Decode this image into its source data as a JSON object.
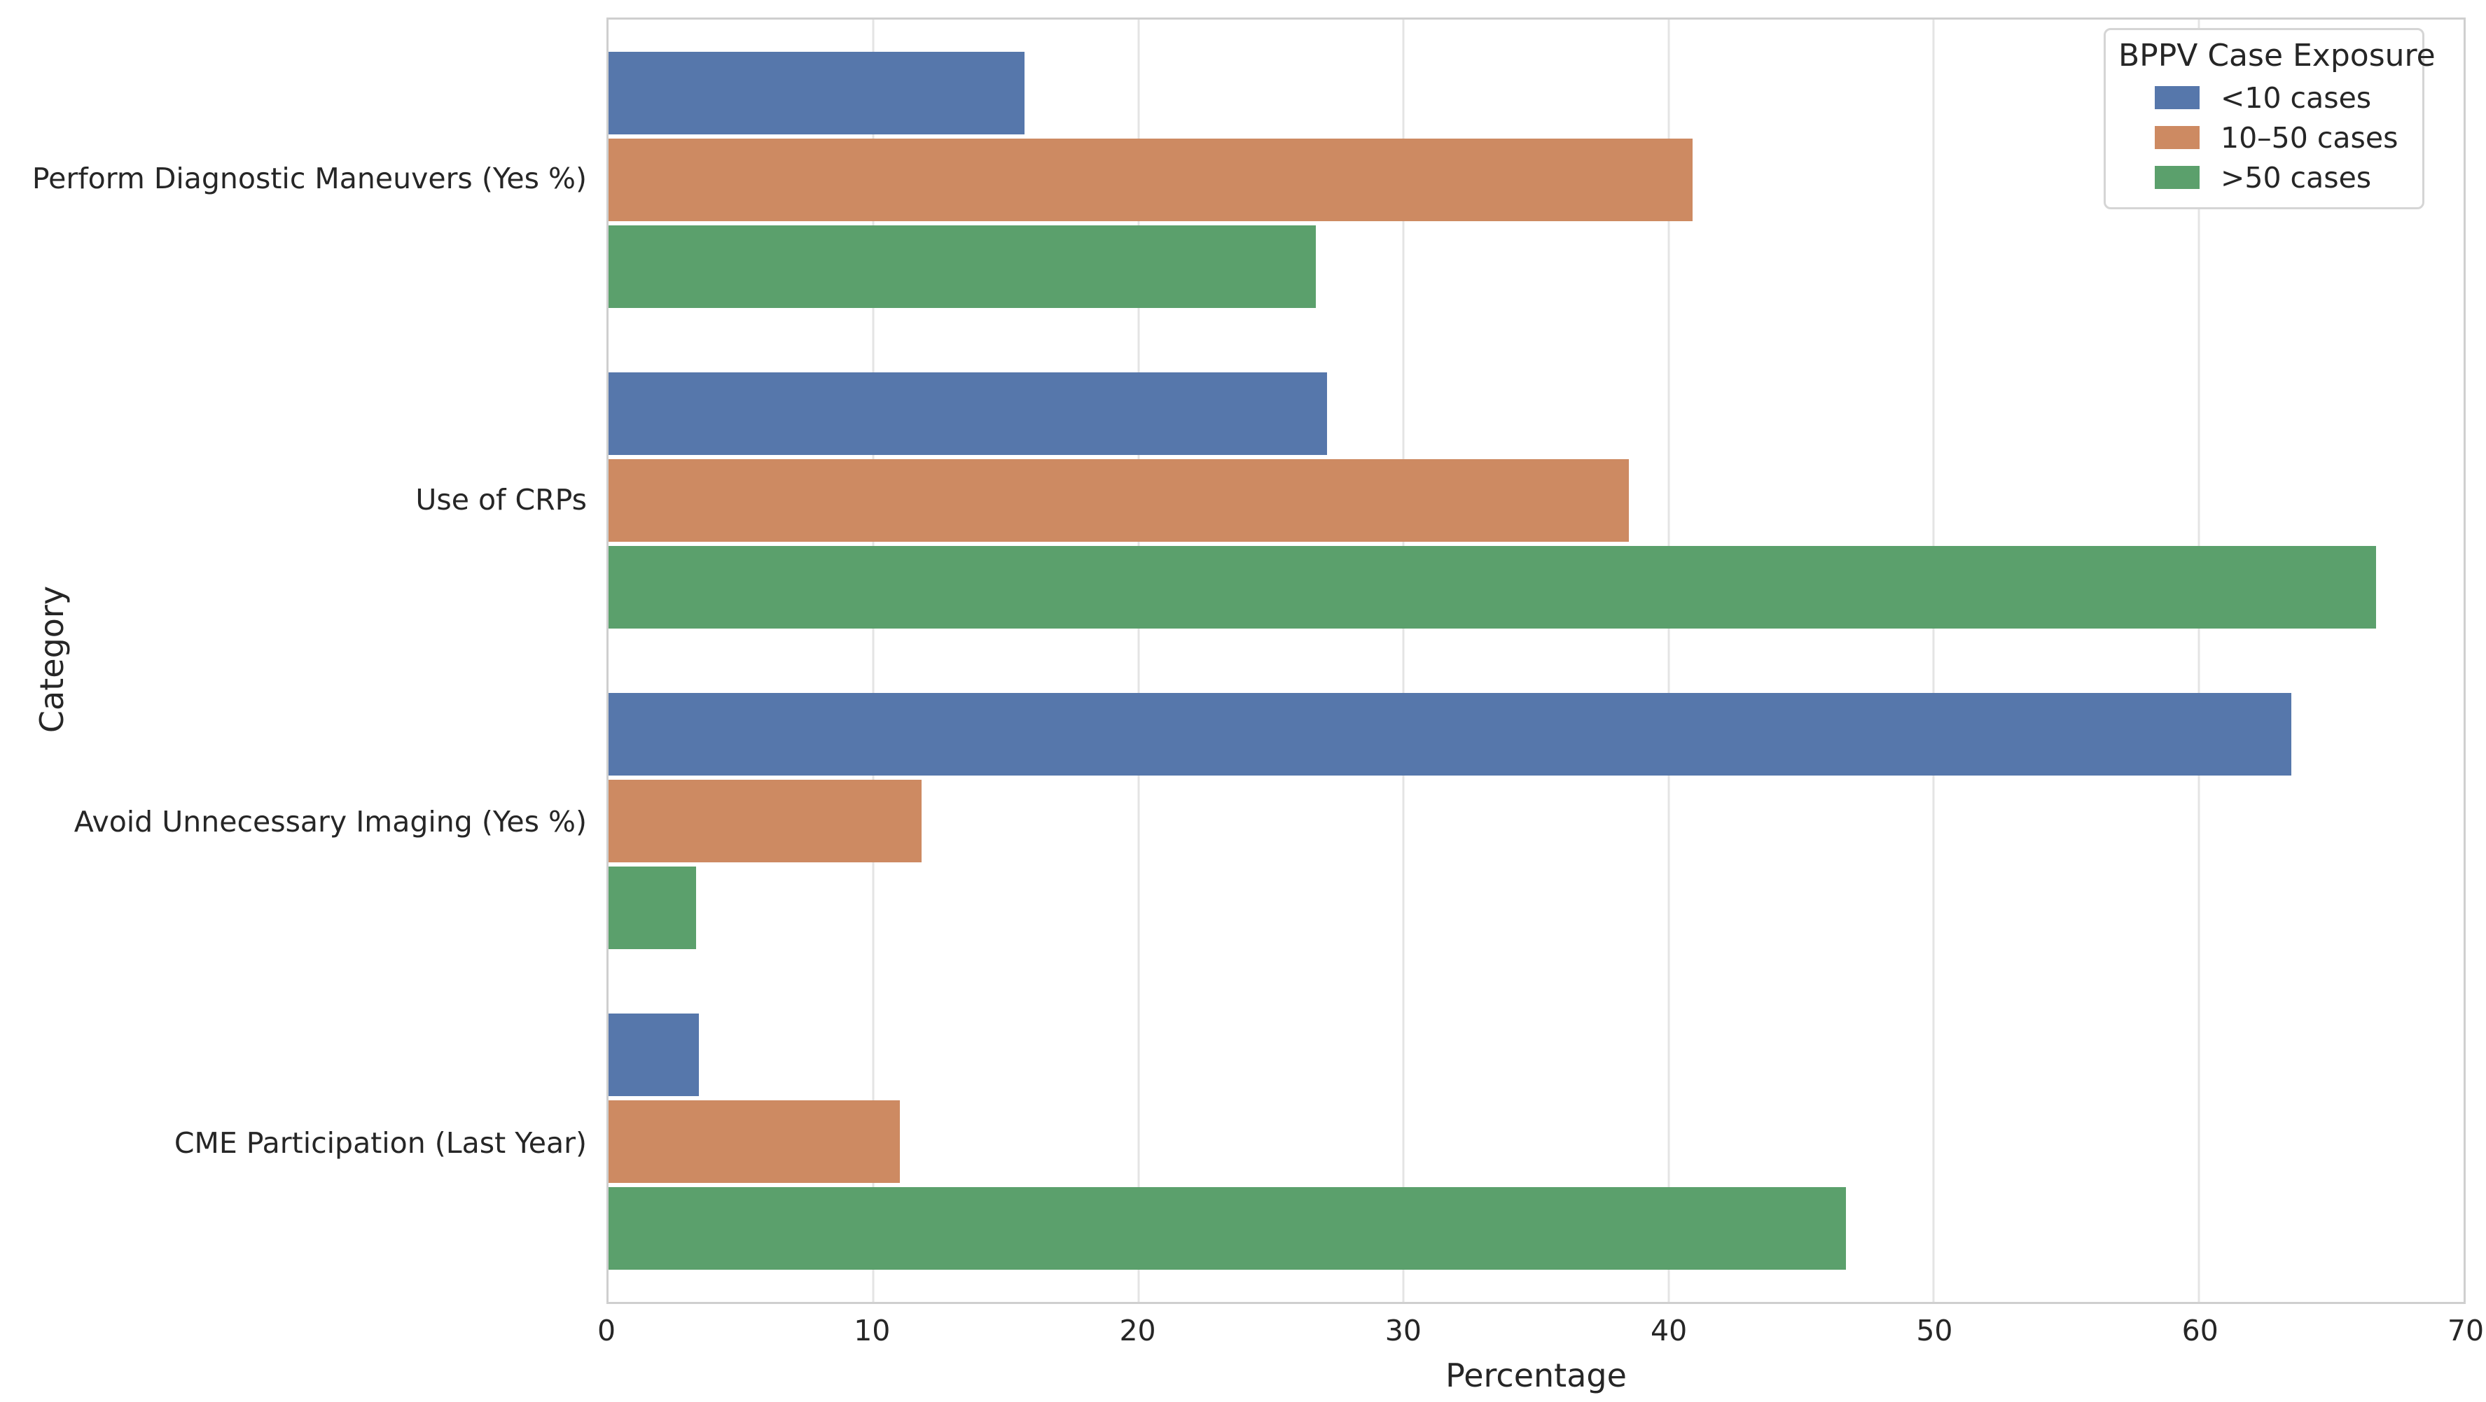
{
  "figure": {
    "background": "#ffffff",
    "text_color": "#262626",
    "grid_color": "#e4e4e4",
    "spine_color": "#cfcfcf"
  },
  "chart_data": {
    "type": "bar",
    "orientation": "horizontal",
    "title": "",
    "xlabel": "Percentage",
    "ylabel": "Category",
    "xlim": [
      0,
      70
    ],
    "xticks": [
      0,
      10,
      20,
      30,
      40,
      50,
      60,
      70
    ],
    "grid": "vertical",
    "categories": [
      "Perform Diagnostic Maneuvers (Yes %)",
      "Use of CRPs",
      "Avoid Unnecessary Imaging (Yes %)",
      "CME Participation (Last Year)"
    ],
    "series": [
      {
        "name": "<10 cases",
        "color": "#5677AB",
        "values": [
          15.7,
          27.1,
          63.5,
          3.4
        ]
      },
      {
        "name": "10–50 cases",
        "color": "#CD8A62",
        "values": [
          40.9,
          38.5,
          11.8,
          11.0
        ]
      },
      {
        "name": ">50 cases",
        "color": "#5BA06C",
        "values": [
          26.7,
          66.7,
          3.3,
          46.7
        ]
      }
    ],
    "legend": {
      "title": "BPPV Case Exposure",
      "position": "top-right"
    }
  }
}
